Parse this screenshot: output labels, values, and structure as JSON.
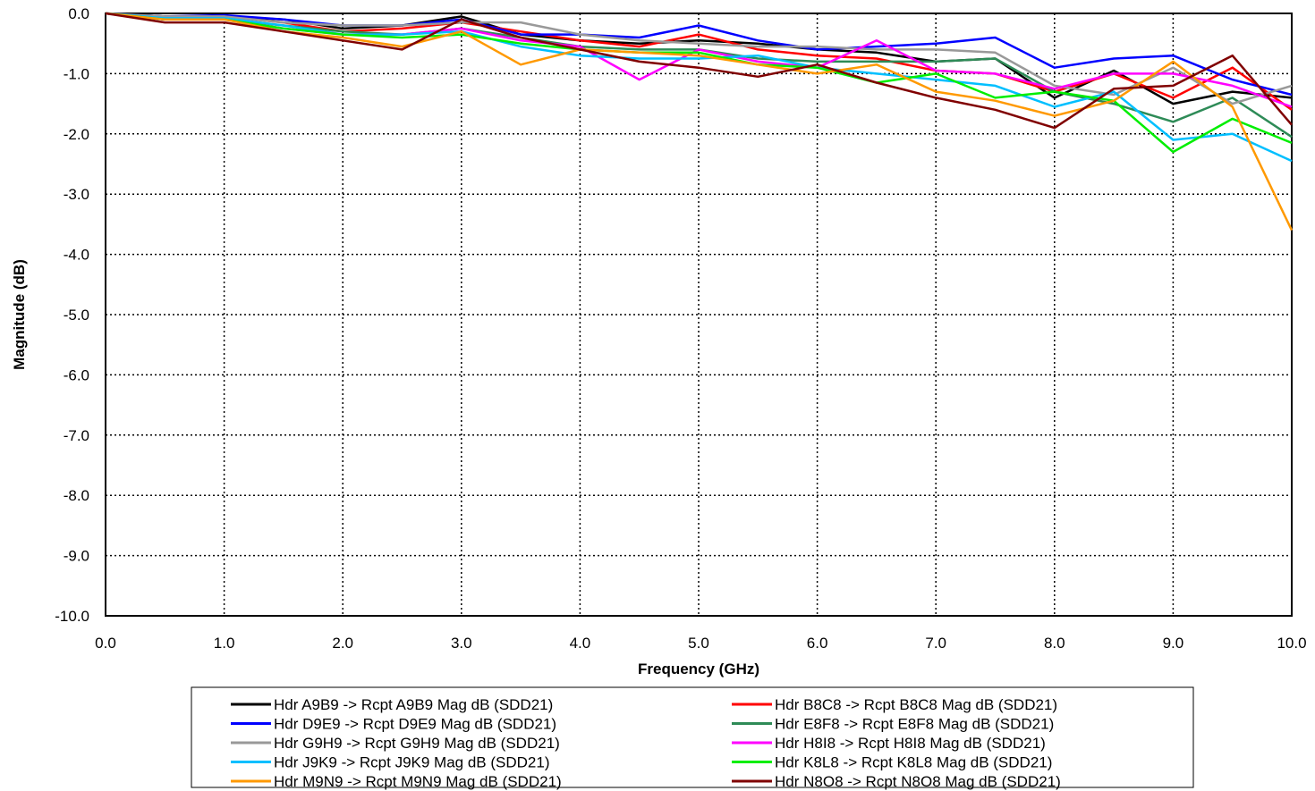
{
  "chart_data": {
    "type": "line",
    "title": "",
    "xlabel": "Frequency (GHz)",
    "ylabel": "Magnitude (dB)",
    "xlim": [
      0,
      10
    ],
    "ylim": [
      -10,
      0
    ],
    "x_ticks": [
      "0.0",
      "1.0",
      "2.0",
      "3.0",
      "4.0",
      "5.0",
      "6.0",
      "7.0",
      "8.0",
      "9.0",
      "10.0"
    ],
    "y_ticks": [
      "0.0",
      "-1.0",
      "-2.0",
      "-3.0",
      "-4.0",
      "-5.0",
      "-6.0",
      "-7.0",
      "-8.0",
      "-9.0",
      "-10.0"
    ],
    "grid": true,
    "legend_position": "bottom",
    "x": [
      0.0,
      0.5,
      1.0,
      1.5,
      2.0,
      2.5,
      3.0,
      3.5,
      4.0,
      4.5,
      5.0,
      5.5,
      6.0,
      6.5,
      7.0,
      7.5,
      8.0,
      8.5,
      9.0,
      9.5,
      10.0
    ],
    "series": [
      {
        "name": "Hdr A9B9 -> Rcpt A9B9 Mag dB (SDD21)",
        "color": "#000000",
        "values": [
          0.0,
          -0.05,
          -0.05,
          -0.1,
          -0.25,
          -0.2,
          -0.05,
          -0.35,
          -0.45,
          -0.5,
          -0.45,
          -0.5,
          -0.6,
          -0.65,
          -0.8,
          -0.75,
          -1.4,
          -0.95,
          -1.5,
          -1.3,
          -1.4
        ]
      },
      {
        "name": "Hdr B8C8 -> Rcpt B8C8 Mag dB (SDD21)",
        "color": "#ff0000",
        "values": [
          0.0,
          -0.08,
          -0.05,
          -0.15,
          -0.3,
          -0.25,
          -0.15,
          -0.3,
          -0.45,
          -0.55,
          -0.35,
          -0.6,
          -0.7,
          -0.75,
          -0.95,
          -1.0,
          -1.3,
          -1.0,
          -1.4,
          -0.9,
          -1.6
        ]
      },
      {
        "name": "Hdr D9E9 -> Rcpt D9E9 Mag dB (SDD21)",
        "color": "#0000ff",
        "values": [
          0.0,
          -0.05,
          -0.03,
          -0.1,
          -0.2,
          -0.2,
          -0.1,
          -0.35,
          -0.35,
          -0.4,
          -0.2,
          -0.45,
          -0.6,
          -0.55,
          -0.5,
          -0.4,
          -0.9,
          -0.75,
          -0.7,
          -1.1,
          -1.35
        ]
      },
      {
        "name": "Hdr E8F8 -> Rcpt E8F8 Mag dB (SDD21)",
        "color": "#2e8b57",
        "values": [
          0.0,
          -0.1,
          -0.1,
          -0.2,
          -0.3,
          -0.35,
          -0.25,
          -0.4,
          -0.55,
          -0.6,
          -0.6,
          -0.75,
          -0.8,
          -0.8,
          -0.8,
          -0.75,
          -1.3,
          -1.5,
          -1.8,
          -1.4,
          -2.05
        ]
      },
      {
        "name": "Hdr G9H9 -> Rcpt G9H9 Mag dB (SDD21)",
        "color": "#999999",
        "values": [
          0.0,
          -0.05,
          -0.05,
          -0.15,
          -0.2,
          -0.2,
          -0.15,
          -0.15,
          -0.35,
          -0.45,
          -0.5,
          -0.55,
          -0.55,
          -0.6,
          -0.6,
          -0.65,
          -1.2,
          -1.35,
          -0.9,
          -1.5,
          -1.2
        ]
      },
      {
        "name": "Hdr H8I8 -> Rcpt H8I8 Mag dB (SDD21)",
        "color": "#ff00ff",
        "values": [
          0.0,
          -0.1,
          -0.1,
          -0.25,
          -0.35,
          -0.35,
          -0.25,
          -0.45,
          -0.55,
          -1.1,
          -0.6,
          -0.8,
          -0.9,
          -0.45,
          -0.95,
          -1.0,
          -1.25,
          -1.0,
          -1.0,
          -1.2,
          -1.55
        ]
      },
      {
        "name": "Hdr J9K9 -> Rcpt J9K9 Mag dB (SDD21)",
        "color": "#00bfff",
        "values": [
          0.0,
          -0.08,
          -0.08,
          -0.2,
          -0.35,
          -0.35,
          -0.3,
          -0.55,
          -0.7,
          -0.75,
          -0.75,
          -0.7,
          -0.9,
          -1.0,
          -1.1,
          -1.2,
          -1.55,
          -1.3,
          -2.1,
          -2.0,
          -2.45
        ]
      },
      {
        "name": "Hdr K8L8 -> Rcpt K8L8 Mag dB (SDD21)",
        "color": "#00ee00",
        "values": [
          0.0,
          -0.1,
          -0.1,
          -0.25,
          -0.35,
          -0.4,
          -0.35,
          -0.5,
          -0.6,
          -0.65,
          -0.65,
          -0.85,
          -0.9,
          -1.15,
          -1.0,
          -1.4,
          -1.3,
          -1.45,
          -2.3,
          -1.75,
          -2.15
        ]
      },
      {
        "name": "Hdr M9N9 -> Rcpt M9N9 Mag dB (SDD21)",
        "color": "#ff9900",
        "values": [
          0.0,
          -0.1,
          -0.1,
          -0.3,
          -0.4,
          -0.55,
          -0.3,
          -0.85,
          -0.6,
          -0.65,
          -0.7,
          -0.85,
          -1.0,
          -0.85,
          -1.3,
          -1.45,
          -1.7,
          -1.45,
          -0.8,
          -1.55,
          -3.6
        ]
      },
      {
        "name": "Hdr N8O8 -> Rcpt N8O8 Mag dB (SDD21)",
        "color": "#800000",
        "values": [
          0.0,
          -0.15,
          -0.15,
          -0.3,
          -0.45,
          -0.6,
          -0.1,
          -0.4,
          -0.6,
          -0.8,
          -0.9,
          -1.05,
          -0.85,
          -1.15,
          -1.4,
          -1.6,
          -1.9,
          -1.25,
          -1.2,
          -0.7,
          -1.85
        ]
      }
    ]
  }
}
